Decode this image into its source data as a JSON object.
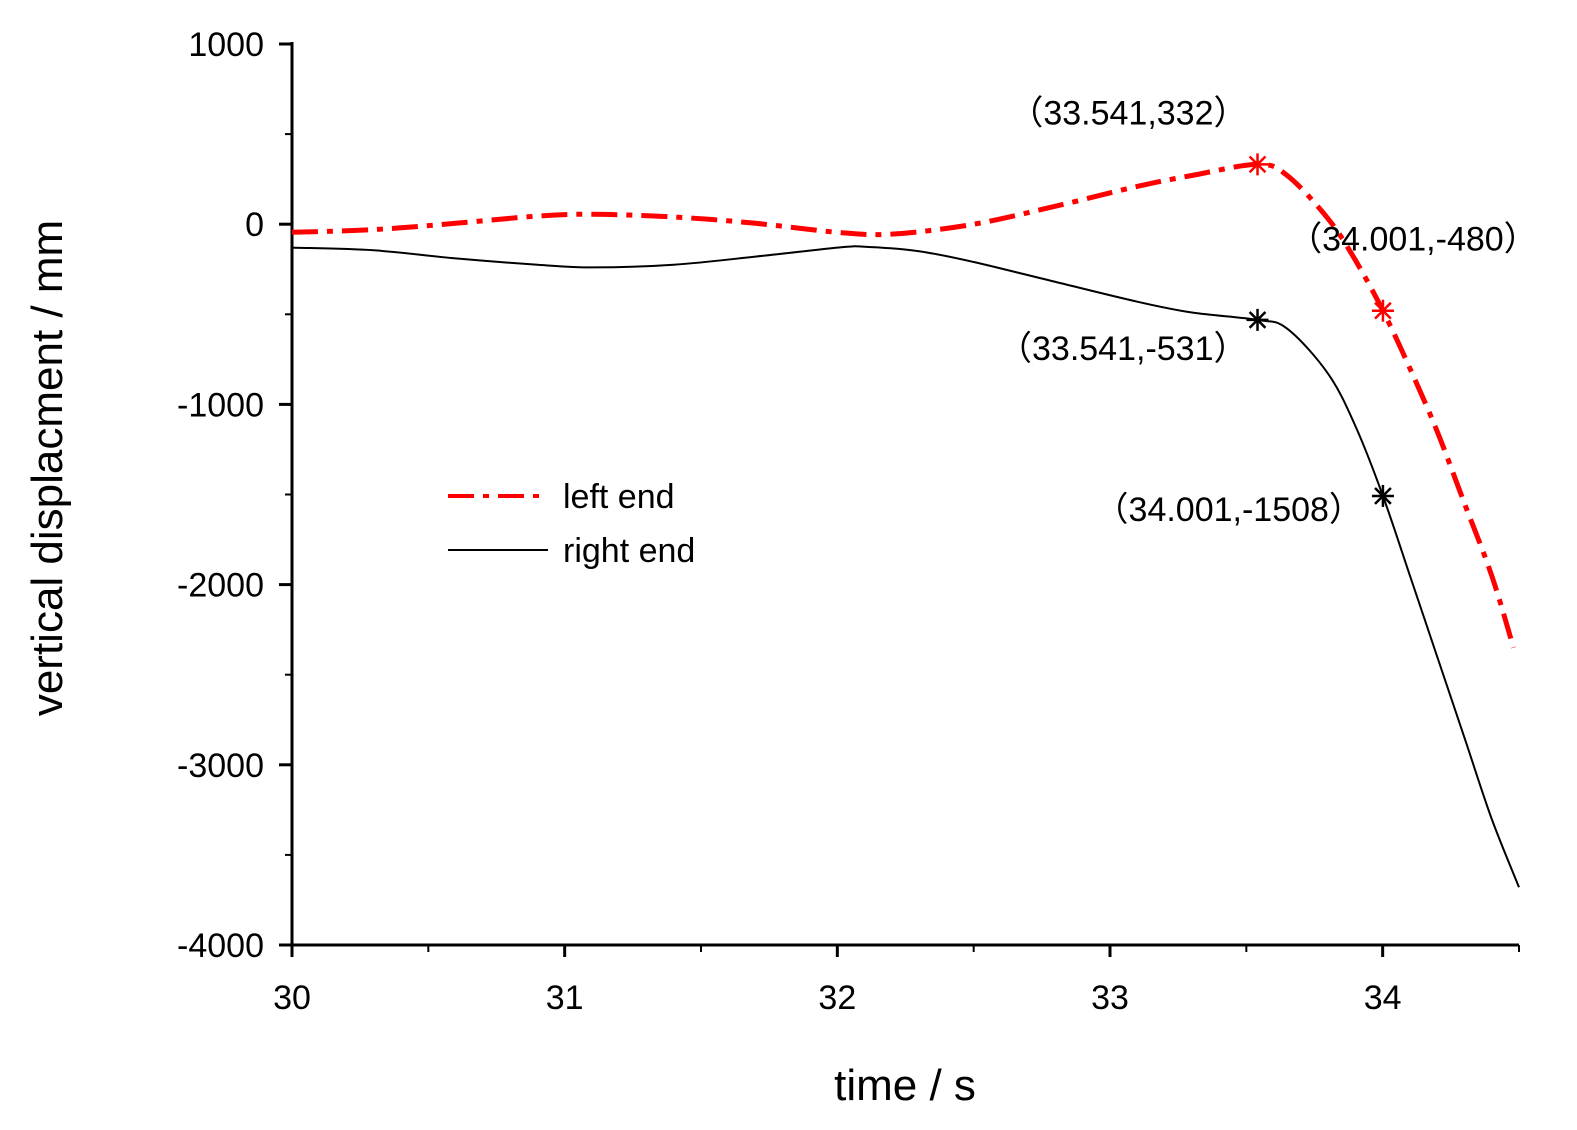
{
  "chart_data": {
    "type": "line",
    "title": "",
    "xlabel": "time / s",
    "ylabel": "vertical displacment / mm",
    "xlim": [
      30,
      34.5
    ],
    "ylim": [
      -4000,
      1000
    ],
    "xticks": [
      30,
      31,
      32,
      33,
      34
    ],
    "xtick_labels": [
      "30",
      "31",
      "32",
      "33",
      "34"
    ],
    "xminor": [
      30.5,
      31.5,
      32.5,
      33.5,
      34.5
    ],
    "yticks": [
      1000,
      0,
      -1000,
      -2000,
      -3000,
      -4000
    ],
    "ytick_labels": [
      "1000",
      "0",
      "-1000",
      "-2000",
      "-3000",
      "-4000"
    ],
    "yminor": [
      500,
      -500,
      -1500,
      -2500,
      -3500
    ],
    "grid": false,
    "legend_position": "center-left",
    "series": [
      {
        "name": "left end",
        "color": "#ff0000",
        "style": "dash-dot",
        "x": [
          30.0,
          30.3,
          30.6,
          30.9,
          31.1,
          31.4,
          31.7,
          32.0,
          32.2,
          32.5,
          32.8,
          33.1,
          33.3,
          33.541,
          33.65,
          33.8,
          33.9,
          34.001,
          34.1,
          34.2,
          34.3,
          34.4,
          34.48
        ],
        "y": [
          -45,
          -30,
          5,
          45,
          55,
          40,
          5,
          -45,
          -55,
          0,
          100,
          210,
          270,
          332,
          270,
          30,
          -200,
          -480,
          -800,
          -1150,
          -1550,
          -1950,
          -2350
        ]
      },
      {
        "name": "right end",
        "color": "#000000",
        "style": "solid",
        "x": [
          30.0,
          30.3,
          30.6,
          30.9,
          31.1,
          31.4,
          31.7,
          32.0,
          32.1,
          32.3,
          32.5,
          32.8,
          33.1,
          33.3,
          33.541,
          33.65,
          33.8,
          33.9,
          34.001,
          34.1,
          34.2,
          34.3,
          34.4,
          34.5
        ],
        "y": [
          -130,
          -145,
          -190,
          -225,
          -240,
          -225,
          -180,
          -130,
          -125,
          -150,
          -210,
          -320,
          -430,
          -490,
          -531,
          -580,
          -830,
          -1120,
          -1508,
          -1950,
          -2400,
          -2850,
          -3300,
          -3680
        ]
      }
    ],
    "markers": [
      {
        "x": 33.541,
        "y": 332,
        "color": "#ff0000"
      },
      {
        "x": 34.001,
        "y": -480,
        "color": "#ff0000"
      },
      {
        "x": 33.541,
        "y": -531,
        "color": "#000000"
      },
      {
        "x": 34.001,
        "y": -1508,
        "color": "#000000"
      }
    ],
    "annotations": [
      {
        "text": "（33.541,332）",
        "x": 33.541,
        "y": 332,
        "anchor": "end",
        "dx": -10,
        "dy": -40
      },
      {
        "text": "（34.001,-480）",
        "x": 34.001,
        "y": -480,
        "anchor": "middle",
        "dx": 30,
        "dy": -60
      },
      {
        "text": "（33.541,-531）",
        "x": 33.541,
        "y": -531,
        "anchor": "end",
        "dx": -10,
        "dy": 40
      },
      {
        "text": "（34.001,-1508）",
        "x": 34.001,
        "y": -1508,
        "anchor": "end",
        "dx": -20,
        "dy": 25
      }
    ]
  }
}
